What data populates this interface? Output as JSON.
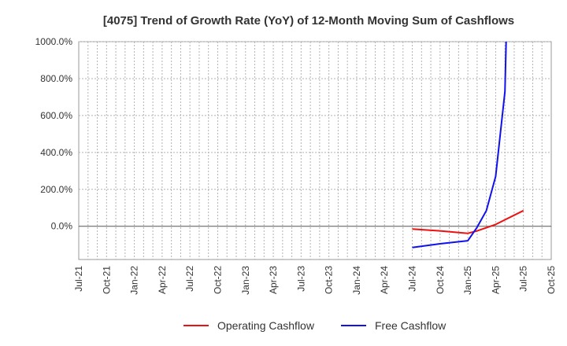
{
  "chart_data": {
    "type": "line",
    "title": "[4075]  Trend of Growth Rate (YoY) of 12-Month Moving Sum of Cashflows",
    "xlabel": "",
    "ylabel": "",
    "ylim": [
      -180,
      1000
    ],
    "y_ticks": [
      0,
      200,
      400,
      600,
      800,
      1000
    ],
    "y_tick_labels": [
      "0.0%",
      "200.0%",
      "400.0%",
      "600.0%",
      "800.0%",
      "1000.0%"
    ],
    "x_range": [
      "2021-07",
      "2025-10"
    ],
    "x_tick_labels": [
      "Jul-21",
      "Oct-21",
      "Jan-22",
      "Apr-22",
      "Jul-22",
      "Oct-22",
      "Jan-23",
      "Apr-23",
      "Jul-23",
      "Oct-23",
      "Jan-24",
      "Apr-24",
      "Jul-24",
      "Oct-24",
      "Jan-25",
      "Apr-25",
      "Jul-25",
      "Oct-25"
    ],
    "grid": true,
    "legend_position": "bottom",
    "series": [
      {
        "name": "Operating Cashflow",
        "color": "#ee1111",
        "points": [
          {
            "x": "2024-07",
            "y": -15
          },
          {
            "x": "2024-10",
            "y": -25
          },
          {
            "x": "2025-01",
            "y": -38
          },
          {
            "x": "2025-02",
            "y": -25
          },
          {
            "x": "2025-03",
            "y": -8
          },
          {
            "x": "2025-04",
            "y": 10
          },
          {
            "x": "2025-05",
            "y": 35
          },
          {
            "x": "2025-06",
            "y": 60
          },
          {
            "x": "2025-07",
            "y": 85
          }
        ]
      },
      {
        "name": "Free Cashflow",
        "color": "#1111ee",
        "points": [
          {
            "x": "2024-07",
            "y": -115
          },
          {
            "x": "2024-10",
            "y": -95
          },
          {
            "x": "2025-01",
            "y": -78
          },
          {
            "x": "2025-02",
            "y": -5
          },
          {
            "x": "2025-03",
            "y": 85
          },
          {
            "x": "2025-04",
            "y": 270
          },
          {
            "x": "2025-05",
            "y": 730
          },
          {
            "x": "2025-05-05",
            "y": 1000
          }
        ]
      }
    ]
  }
}
